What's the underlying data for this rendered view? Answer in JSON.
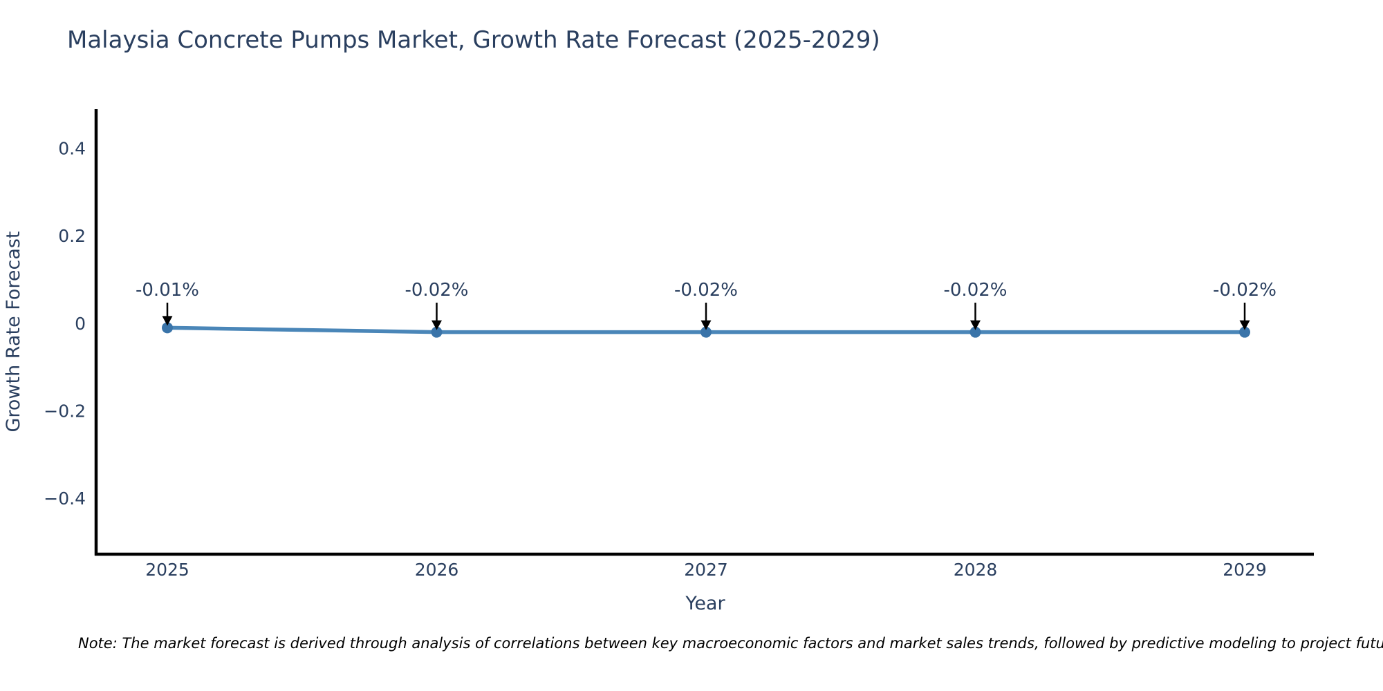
{
  "title": "Malaysia Concrete Pumps Market, Growth Rate Forecast (2025-2029)",
  "note": "Note: The market forecast is derived through analysis of correlations between key macroeconomic factors and market sales trends, followed by predictive modeling to project future sa",
  "chart_data": {
    "type": "line",
    "title": "Malaysia Concrete Pumps Market, Growth Rate Forecast (2025-2029)",
    "xlabel": "Year",
    "ylabel": "Growth Rate Forecast",
    "x": [
      2025,
      2026,
      2027,
      2028,
      2029
    ],
    "x_tick_labels": [
      "2025",
      "2026",
      "2027",
      "2028",
      "2029"
    ],
    "series": [
      {
        "name": "Growth Rate Forecast",
        "values": [
          -0.01,
          -0.02,
          -0.02,
          -0.02,
          -0.02
        ]
      }
    ],
    "point_labels": [
      "-0.01%",
      "-0.02%",
      "-0.02%",
      "-0.02%",
      "-0.02%"
    ],
    "yticks": [
      0.4,
      0.2,
      0,
      -0.2,
      -0.4
    ],
    "ytick_labels": [
      "0.4",
      "0.2",
      "0",
      "−0.2",
      "−0.4"
    ],
    "ylim": [
      -0.5,
      0.5
    ],
    "grid": false,
    "legend_position": "none",
    "colors": {
      "line": "#4a86b8",
      "marker": "#3a74a9",
      "axis_line": "#000000",
      "text": "#2a3f5f",
      "annotation_text": "#2a3f5f",
      "annotation_arrow": "#000000",
      "note_text": "#000000",
      "background": "#ffffff"
    }
  }
}
